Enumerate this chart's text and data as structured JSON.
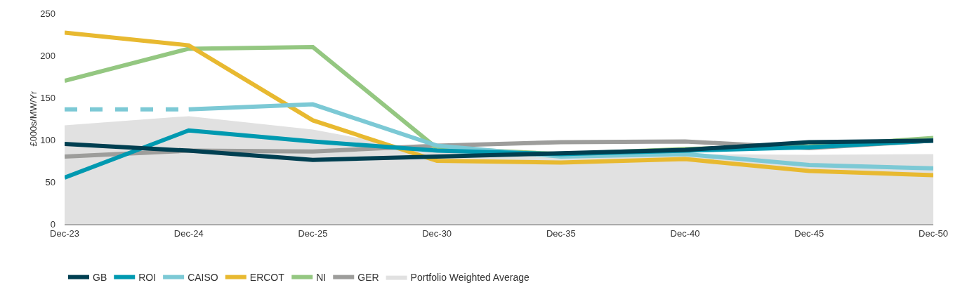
{
  "chart_data": {
    "type": "line",
    "ylabel": "£000s/MW/Yr",
    "categories": [
      "Dec-23",
      "Dec-24",
      "Dec-25",
      "Dec-30",
      "Dec-35",
      "Dec-40",
      "Dec-45",
      "Dec-50"
    ],
    "ylim": [
      0,
      250
    ],
    "yticks": [
      0,
      50,
      100,
      150,
      200,
      250
    ],
    "grid": false,
    "legend": "bottom",
    "marker": "none",
    "line_style": "solid",
    "series": [
      {
        "name": "Portfolio Weighted Average",
        "type": "area",
        "color": "#e1e1e1",
        "values": [
          117,
          128,
          112,
          85,
          84,
          83,
          82,
          83
        ]
      },
      {
        "name": "GER",
        "color": "#9d9d9b",
        "values": [
          80,
          87,
          86,
          93,
          97,
          98,
          90,
          99
        ]
      },
      {
        "name": "NI",
        "color": "#94c781",
        "values": [
          170,
          208,
          210,
          90,
          83,
          89,
          92,
          102
        ]
      },
      {
        "name": "ERCOT",
        "color": "#e8b930",
        "values": [
          227,
          212,
          123,
          75,
          73,
          77,
          63,
          58
        ]
      },
      {
        "color": "#7cc9d5",
        "line_style": "dashed",
        "values": [
          136,
          136,
          null,
          null,
          null,
          null,
          null,
          null
        ]
      },
      {
        "name": "CAISO",
        "color": "#7cc9d5",
        "values": [
          null,
          136,
          142,
          93,
          80,
          83,
          70,
          66
        ]
      },
      {
        "name": "ROI",
        "color": "#0099b0",
        "values": [
          55,
          111,
          98,
          87,
          83,
          87,
          91,
          99
        ]
      },
      {
        "name": "GB",
        "color": "#003f51",
        "values": [
          95,
          87,
          76,
          80,
          84,
          88,
          97,
          99
        ]
      }
    ]
  }
}
